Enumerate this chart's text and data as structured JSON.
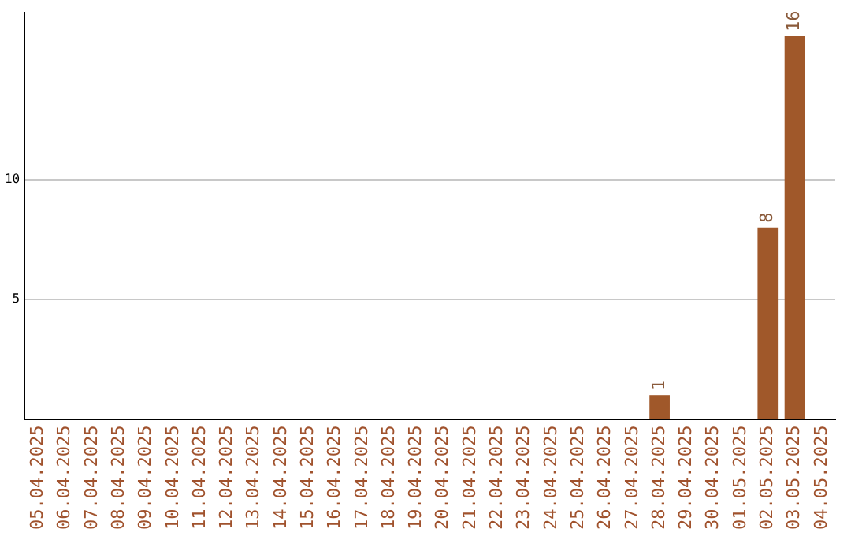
{
  "chart_data": {
    "type": "bar",
    "categories": [
      "05.04.2025",
      "06.04.2025",
      "07.04.2025",
      "08.04.2025",
      "09.04.2025",
      "10.04.2025",
      "11.04.2025",
      "12.04.2025",
      "13.04.2025",
      "14.04.2025",
      "15.04.2025",
      "16.04.2025",
      "17.04.2025",
      "18.04.2025",
      "19.04.2025",
      "20.04.2025",
      "21.04.2025",
      "22.04.2025",
      "23.04.2025",
      "24.04.2025",
      "25.04.2025",
      "26.04.2025",
      "27.04.2025",
      "28.04.2025",
      "29.04.2025",
      "30.04.2025",
      "01.05.2025",
      "02.05.2025",
      "03.05.2025",
      "04.05.2025"
    ],
    "values": [
      0,
      0,
      0,
      0,
      0,
      0,
      0,
      0,
      0,
      0,
      0,
      0,
      0,
      0,
      0,
      0,
      0,
      0,
      0,
      0,
      0,
      0,
      0,
      1,
      0,
      0,
      0,
      8,
      16,
      0
    ],
    "value_labels": [
      null,
      null,
      null,
      null,
      null,
      null,
      null,
      null,
      null,
      null,
      null,
      null,
      null,
      null,
      null,
      null,
      null,
      null,
      null,
      null,
      null,
      null,
      null,
      "1",
      null,
      null,
      null,
      "8",
      "16",
      null
    ],
    "color": "#a0582a",
    "ylim": [
      0,
      17
    ],
    "yticks": [
      5,
      10
    ],
    "grid": "y",
    "legend": false
  }
}
